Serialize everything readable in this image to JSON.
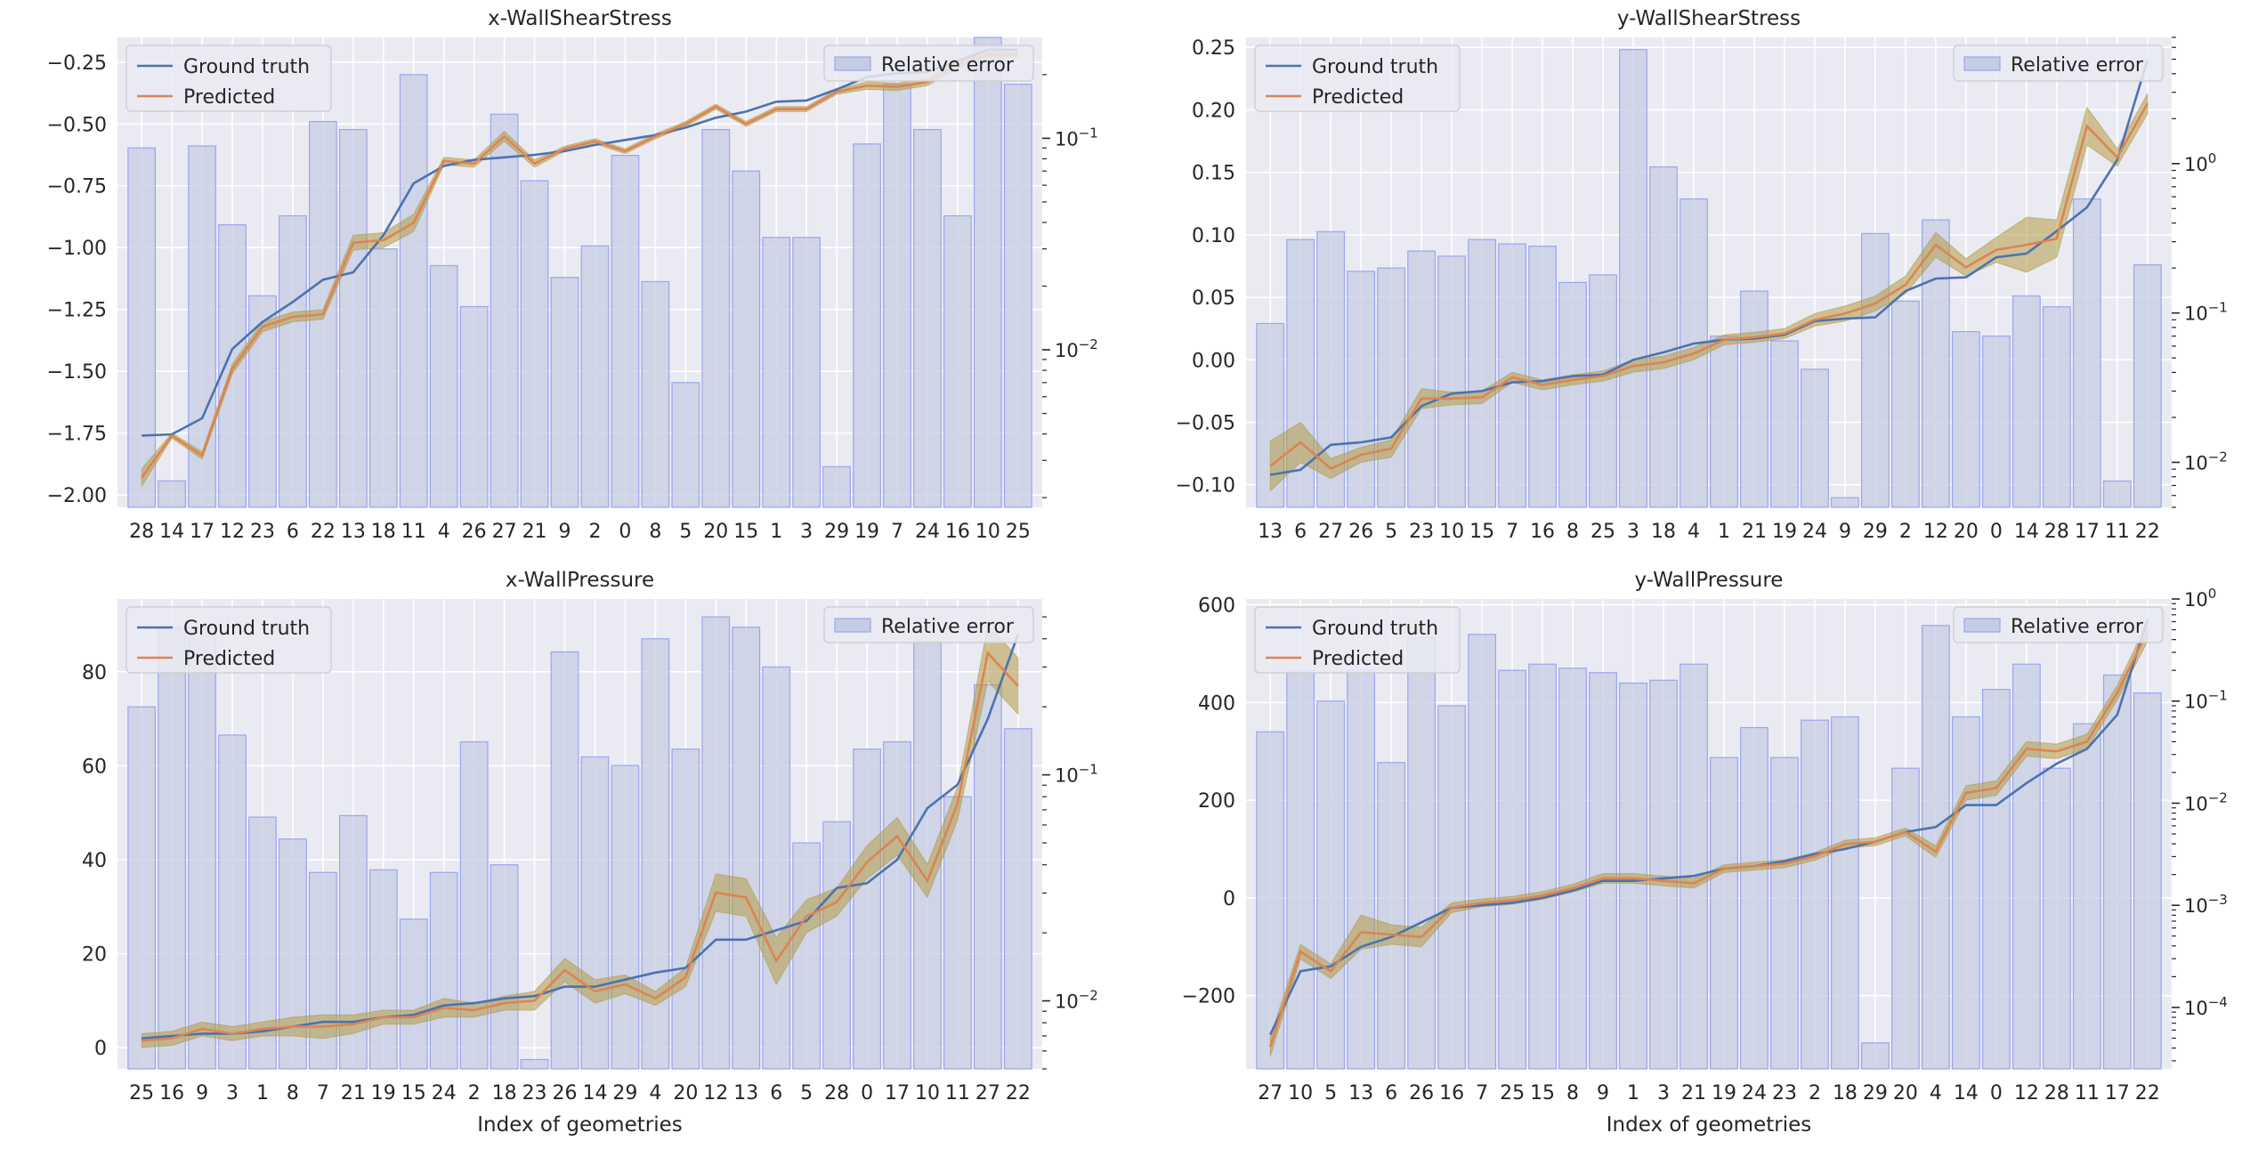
{
  "figure": {
    "xlabel": "Index of geometries"
  },
  "legend": {
    "ground_truth": "Ground truth",
    "predicted": "Predicted",
    "relative_error": "Relative error"
  },
  "colors": {
    "ground_truth": "#4c72b0",
    "predicted": "#dd8452",
    "band": "#b29b45",
    "bar_fill": "#c6cce3",
    "bar_edge": "#9aa6ef",
    "background": "#eaeaf2"
  },
  "chart_data": [
    {
      "type": "bar+line",
      "title": "x-WallShearStress",
      "xlabel": "",
      "categories": [
        "28",
        "14",
        "17",
        "12",
        "23",
        "6",
        "22",
        "13",
        "18",
        "11",
        "4",
        "26",
        "27",
        "21",
        "9",
        "2",
        "0",
        "8",
        "5",
        "20",
        "15",
        "1",
        "3",
        "29",
        "19",
        "7",
        "24",
        "16",
        "10",
        "25"
      ],
      "ylim": [
        -2.05,
        -0.15
      ],
      "yticks": [
        -2.0,
        -1.75,
        -1.5,
        -1.25,
        -1.0,
        -0.75,
        -0.5,
        -0.25
      ],
      "ytick_labels": [
        "−2.00",
        "−1.75",
        "−1.50",
        "−1.25",
        "−1.00",
        "−0.75",
        "−0.50",
        "−0.25"
      ],
      "error_scale": "log",
      "error_lim": [
        0.0018,
        0.3
      ],
      "error_ticks": [
        0.01,
        0.1
      ],
      "error_tick_labels": [
        "10−2",
        "10−1"
      ],
      "ground_truth": [
        -1.76,
        -1.755,
        -1.69,
        -1.41,
        -1.3,
        -1.22,
        -1.13,
        -1.1,
        -0.95,
        -0.74,
        -0.67,
        -0.645,
        -0.635,
        -0.625,
        -0.61,
        -0.585,
        -0.565,
        -0.545,
        -0.515,
        -0.475,
        -0.45,
        -0.41,
        -0.405,
        -0.36,
        -0.31,
        -0.295,
        -0.29,
        -0.245,
        -0.2,
        -0.2
      ],
      "predicted": [
        -1.93,
        -1.76,
        -1.84,
        -1.49,
        -1.32,
        -1.28,
        -1.27,
        -0.98,
        -0.97,
        -0.9,
        -0.65,
        -0.66,
        -0.55,
        -0.66,
        -0.6,
        -0.57,
        -0.61,
        -0.55,
        -0.5,
        -0.43,
        -0.5,
        -0.44,
        -0.44,
        -0.37,
        -0.345,
        -0.35,
        -0.33,
        -0.26,
        -0.22,
        -0.22
      ],
      "band": [
        0.035,
        0.01,
        0.015,
        0.02,
        0.02,
        0.02,
        0.02,
        0.03,
        0.03,
        0.035,
        0.015,
        0.015,
        0.02,
        0.015,
        0.01,
        0.01,
        0.01,
        0.01,
        0.01,
        0.01,
        0.01,
        0.01,
        0.01,
        0.01,
        0.015,
        0.015,
        0.015,
        0.015,
        0.01,
        0.01
      ],
      "relative_error": [
        0.09,
        0.0024,
        0.092,
        0.039,
        0.018,
        0.043,
        0.12,
        0.11,
        0.03,
        0.2,
        0.025,
        0.016,
        0.13,
        0.063,
        0.022,
        0.031,
        0.083,
        0.021,
        0.007,
        0.11,
        0.07,
        0.034,
        0.034,
        0.0028,
        0.094,
        0.18,
        0.11,
        0.043,
        0.3,
        0.18
      ]
    },
    {
      "type": "bar+line",
      "title": "y-WallShearStress",
      "xlabel": "",
      "categories": [
        "13",
        "6",
        "27",
        "26",
        "5",
        "23",
        "10",
        "15",
        "7",
        "16",
        "8",
        "25",
        "3",
        "18",
        "4",
        "1",
        "21",
        "19",
        "24",
        "9",
        "29",
        "2",
        "12",
        "20",
        "0",
        "14",
        "28",
        "17",
        "11",
        "22"
      ],
      "ylim": [
        -0.118,
        0.258
      ],
      "yticks": [
        -0.1,
        -0.05,
        0.0,
        0.05,
        0.1,
        0.15,
        0.2,
        0.25
      ],
      "ytick_labels": [
        "−0.10",
        "−0.05",
        "0.00",
        "0.05",
        "0.10",
        "0.15",
        "0.20",
        "0.25"
      ],
      "error_scale": "log",
      "error_lim": [
        0.005,
        7.0
      ],
      "error_ticks": [
        0.01,
        0.1,
        1
      ],
      "error_tick_labels": [
        "10−2",
        "10−1",
        "100"
      ],
      "ground_truth": [
        -0.092,
        -0.088,
        -0.068,
        -0.066,
        -0.062,
        -0.037,
        -0.027,
        -0.025,
        -0.018,
        -0.017,
        -0.013,
        -0.012,
        0.0,
        0.006,
        0.013,
        0.016,
        0.017,
        0.02,
        0.031,
        0.033,
        0.034,
        0.055,
        0.065,
        0.066,
        0.082,
        0.085,
        0.103,
        0.122,
        0.16,
        0.24
      ],
      "predicted": [
        -0.085,
        -0.066,
        -0.087,
        -0.076,
        -0.071,
        -0.031,
        -0.031,
        -0.03,
        -0.014,
        -0.02,
        -0.016,
        -0.013,
        -0.005,
        -0.002,
        0.005,
        0.016,
        0.018,
        0.021,
        0.032,
        0.037,
        0.045,
        0.06,
        0.092,
        0.074,
        0.088,
        0.092,
        0.097,
        0.187,
        0.162,
        0.205
      ],
      "band": [
        0.02,
        0.016,
        0.008,
        0.006,
        0.007,
        0.008,
        0.005,
        0.005,
        0.004,
        0.004,
        0.004,
        0.004,
        0.005,
        0.005,
        0.005,
        0.004,
        0.004,
        0.004,
        0.005,
        0.006,
        0.006,
        0.007,
        0.01,
        0.007,
        0.01,
        0.022,
        0.015,
        0.015,
        0.007,
        0.008
      ],
      "relative_error": [
        0.085,
        0.31,
        0.35,
        0.19,
        0.2,
        0.26,
        0.24,
        0.31,
        0.29,
        0.28,
        0.16,
        0.18,
        5.8,
        0.95,
        0.58,
        0.07,
        0.14,
        0.065,
        0.042,
        0.0058,
        0.34,
        0.12,
        0.42,
        0.075,
        0.07,
        0.13,
        0.11,
        0.58,
        0.0075,
        0.21
      ]
    },
    {
      "type": "bar+line",
      "title": "x-WallPressure",
      "xlabel": "Index of geometries",
      "categories": [
        "25",
        "16",
        "9",
        "3",
        "1",
        "8",
        "7",
        "21",
        "19",
        "15",
        "24",
        "2",
        "18",
        "23",
        "26",
        "14",
        "29",
        "4",
        "20",
        "12",
        "13",
        "6",
        "5",
        "28",
        "0",
        "17",
        "10",
        "11",
        "27",
        "22"
      ],
      "ylim": [
        -4.5,
        95.5
      ],
      "yticks": [
        0,
        20,
        40,
        60,
        80
      ],
      "ytick_labels": [
        "0",
        "20",
        "40",
        "60",
        "80"
      ],
      "error_scale": "log",
      "error_lim": [
        0.005,
        0.6
      ],
      "error_ticks": [
        0.01,
        0.1
      ],
      "error_tick_labels": [
        "10−2",
        "10−1"
      ],
      "ground_truth": [
        2.0,
        2.5,
        3.0,
        3.0,
        3.5,
        4.5,
        5.5,
        5.5,
        6.5,
        7.0,
        9.0,
        9.5,
        10.5,
        11.0,
        13.0,
        13.0,
        14.5,
        16.0,
        17.0,
        23.0,
        23.0,
        25.0,
        27.0,
        34.0,
        35.0,
        40.0,
        51.0,
        56.0,
        70.0,
        88.0
      ],
      "predicted": [
        1.5,
        2.0,
        4.0,
        3.0,
        4.0,
        4.5,
        4.5,
        5.0,
        6.5,
        6.5,
        8.5,
        8.0,
        9.5,
        10.0,
        16.5,
        12.0,
        13.5,
        10.5,
        15.0,
        33.0,
        32.0,
        18.5,
        28.0,
        31.0,
        39.5,
        45.0,
        35.5,
        52.0,
        84.0,
        77.0
      ],
      "band": [
        1.5,
        1.5,
        1.5,
        1.5,
        1.5,
        2.0,
        2.5,
        2.0,
        1.5,
        1.5,
        2.0,
        1.5,
        1.5,
        2.0,
        2.5,
        2.5,
        2.0,
        1.5,
        2.0,
        4.0,
        4.0,
        5.0,
        3.5,
        3.0,
        3.5,
        4.0,
        3.5,
        3.5,
        6.0,
        6.0
      ],
      "relative_error": [
        0.2,
        0.45,
        0.45,
        0.15,
        0.065,
        0.052,
        0.037,
        0.066,
        0.038,
        0.023,
        0.037,
        0.14,
        0.04,
        0.0055,
        0.35,
        0.12,
        0.11,
        0.4,
        0.13,
        0.5,
        0.45,
        0.3,
        0.05,
        0.062,
        0.13,
        0.14,
        0.39,
        0.08,
        0.25,
        0.16
      ]
    },
    {
      "type": "bar+line",
      "title": "y-WallPressure",
      "xlabel": "Index of geometries",
      "categories": [
        "27",
        "10",
        "5",
        "13",
        "6",
        "26",
        "16",
        "7",
        "25",
        "15",
        "8",
        "9",
        "1",
        "3",
        "21",
        "19",
        "24",
        "23",
        "2",
        "18",
        "29",
        "20",
        "4",
        "14",
        "0",
        "12",
        "28",
        "11",
        "17",
        "22"
      ],
      "ylim": [
        -350,
        612
      ],
      "yticks": [
        -200,
        0,
        200,
        400,
        600
      ],
      "ytick_labels": [
        "−200",
        "0",
        "200",
        "400",
        "600"
      ],
      "error_scale": "log",
      "error_lim": [
        2.5e-05,
        1.0
      ],
      "error_ticks": [
        0.0001,
        0.001,
        0.01,
        0.1,
        1
      ],
      "error_tick_labels": [
        "10−4",
        "10−3",
        "10−2",
        "10−1",
        "100"
      ],
      "ground_truth": [
        -280,
        -150,
        -140,
        -100,
        -80,
        -50,
        -20,
        -15,
        -10,
        0,
        15,
        35,
        35,
        40,
        45,
        60,
        65,
        75,
        90,
        100,
        115,
        135,
        145,
        190,
        190,
        235,
        275,
        305,
        375,
        570
      ],
      "predicted": [
        -305,
        -110,
        -150,
        -70,
        -75,
        -80,
        -20,
        -10,
        -5,
        5,
        20,
        40,
        40,
        35,
        30,
        60,
        65,
        70,
        85,
        110,
        115,
        135,
        95,
        215,
        225,
        305,
        300,
        320,
        420,
        545
      ],
      "band": [
        20,
        15,
        15,
        35,
        20,
        20,
        10,
        8,
        8,
        8,
        8,
        10,
        10,
        10,
        10,
        8,
        8,
        8,
        8,
        8,
        8,
        8,
        12,
        15,
        15,
        15,
        15,
        15,
        15,
        20
      ],
      "relative_error": [
        0.05,
        0.2,
        0.1,
        0.2,
        0.025,
        0.42,
        0.09,
        0.45,
        0.2,
        0.23,
        0.21,
        0.19,
        0.15,
        0.16,
        0.23,
        0.028,
        0.055,
        0.028,
        0.065,
        0.07,
        4.5e-05,
        0.022,
        0.55,
        0.07,
        0.13,
        0.23,
        0.022,
        0.06,
        0.18,
        0.12
      ]
    }
  ]
}
